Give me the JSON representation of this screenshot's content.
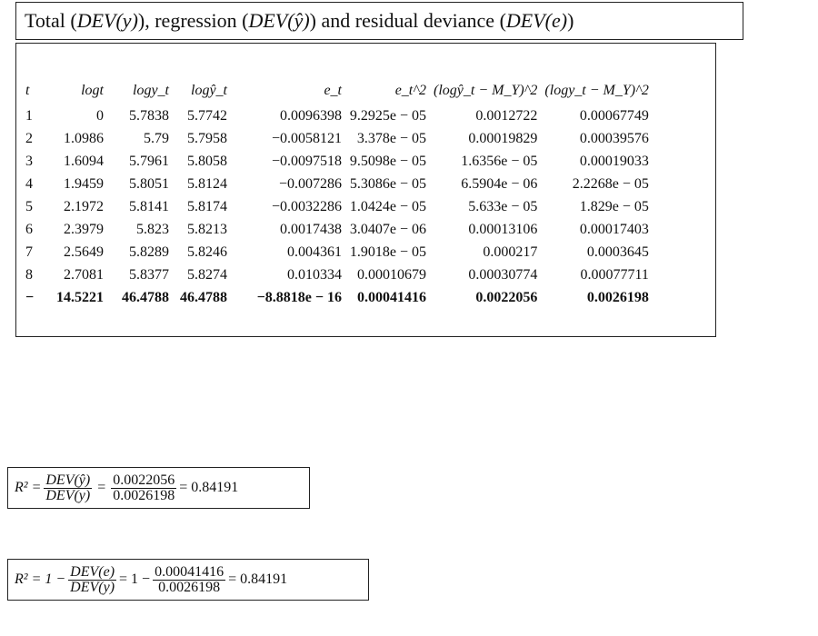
{
  "title": {
    "text_part1": "Total (",
    "sym_total": "DEV(y)",
    "text_part2": "), regression (",
    "sym_reg": "DEV(ŷ)",
    "text_part3": ") and residual deviance (",
    "sym_res": "DEV(e)",
    "text_part4": ")"
  },
  "table": {
    "headers": [
      "t",
      "logt",
      "logy_t",
      "logŷ_t",
      "e_t",
      "e_t^2",
      "(logŷ_t − M_Y)^2",
      "(logy_t − M_Y)^2"
    ],
    "rows": [
      [
        "1",
        "0",
        "5.7838",
        "5.7742",
        "0.0096398",
        "9.2925e − 05",
        "0.0012722",
        "0.00067749"
      ],
      [
        "2",
        "1.0986",
        "5.79",
        "5.7958",
        "−0.0058121",
        "3.378e − 05",
        "0.00019829",
        "0.00039576"
      ],
      [
        "3",
        "1.6094",
        "5.7961",
        "5.8058",
        "−0.0097518",
        "9.5098e − 05",
        "1.6356e − 05",
        "0.00019033"
      ],
      [
        "4",
        "1.9459",
        "5.8051",
        "5.8124",
        "−0.007286",
        "5.3086e − 05",
        "6.5904e − 06",
        "2.2268e − 05"
      ],
      [
        "5",
        "2.1972",
        "5.8141",
        "5.8174",
        "−0.0032286",
        "1.0424e − 05",
        "5.633e − 05",
        "1.829e − 05"
      ],
      [
        "6",
        "2.3979",
        "5.823",
        "5.8213",
        "0.0017438",
        "3.0407e − 06",
        "0.00013106",
        "0.00017403"
      ],
      [
        "7",
        "2.5649",
        "5.8289",
        "5.8246",
        "0.004361",
        "1.9018e − 05",
        "0.000217",
        "0.0003645"
      ],
      [
        "8",
        "2.7081",
        "5.8377",
        "5.8274",
        "0.010334",
        "0.00010679",
        "0.00030774",
        "0.00077711"
      ]
    ],
    "total": [
      "−",
      "14.5221",
      "46.4788",
      "46.4788",
      "−8.8818e − 16",
      "0.00041416",
      "0.0022056",
      "0.0026198"
    ]
  },
  "formula1": {
    "lhs": "R² =",
    "num1": "DEV(ŷ)",
    "den1": "DEV(y)",
    "num2": "0.0022056",
    "den2": "0.0026198",
    "result": "= 0.84191"
  },
  "formula2": {
    "lhs": "R² = 1 −",
    "num1": "DEV(e)",
    "den1": "DEV(y)",
    "mid": "= 1 −",
    "num2": "0.00041416",
    "den2": "0.0026198",
    "result": "= 0.84191"
  }
}
